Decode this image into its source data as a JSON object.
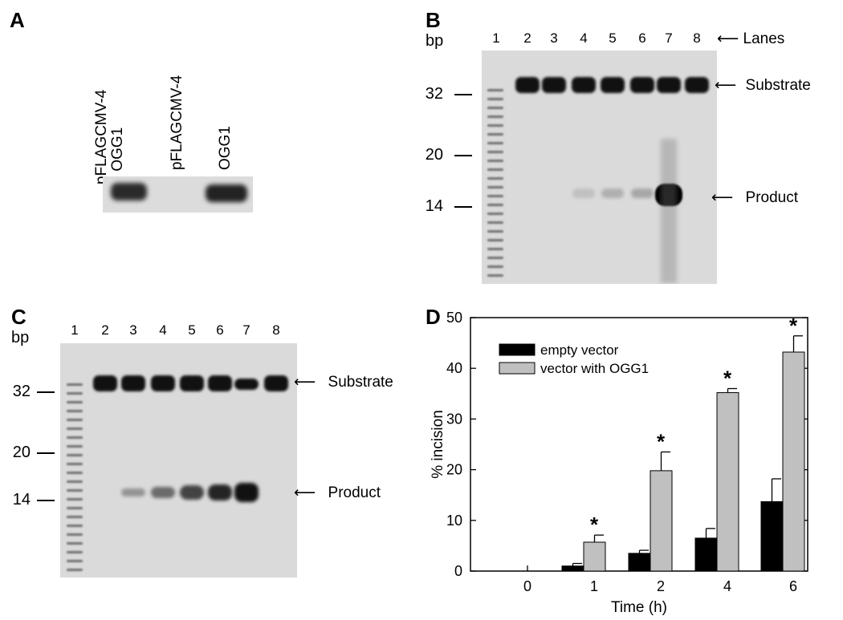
{
  "panel_a": {
    "letter": "A",
    "lane_labels": [
      "pFLAGCMV-4\n+ OGG1",
      "pFLAGCMV-4",
      "OGG1"
    ]
  },
  "panel_b": {
    "letter": "B",
    "bp_label": "bp",
    "lane_numbers": [
      "1",
      "2",
      "3",
      "4",
      "5",
      "6",
      "7",
      "8"
    ],
    "lanes_label": "Lanes",
    "markers": [
      "32",
      "20",
      "14"
    ],
    "substrate_label": "Substrate",
    "product_label": "Product"
  },
  "panel_c": {
    "letter": "C",
    "bp_label": "bp",
    "lane_numbers": [
      "1",
      "2",
      "3",
      "4",
      "5",
      "6",
      "7",
      "8"
    ],
    "markers": [
      "32",
      "20",
      "14"
    ],
    "substrate_label": "Substrate",
    "product_label": "Product"
  },
  "panel_d": {
    "letter": "D"
  },
  "chart_data": {
    "type": "bar",
    "categories": [
      "0",
      "1",
      "2",
      "4",
      "6"
    ],
    "series": [
      {
        "name": "empty vector",
        "values": [
          0,
          1.0,
          3.5,
          6.5,
          13.7
        ],
        "errors": [
          0,
          0.5,
          0.6,
          1.9,
          4.5
        ],
        "color": "#000000"
      },
      {
        "name": "vector with OGG1",
        "values": [
          0,
          5.7,
          19.8,
          35.2,
          43.2
        ],
        "errors": [
          0,
          1.4,
          3.7,
          0.8,
          3.2
        ],
        "color": "#c0c0c0"
      }
    ],
    "significance_marker": "*",
    "significant_categories": [
      "1",
      "2",
      "4",
      "6"
    ],
    "xlabel": "Time (h)",
    "ylabel": "% incision",
    "ylim": [
      0,
      50
    ],
    "yticks": [
      "0",
      "10",
      "20",
      "30",
      "40",
      "50"
    ],
    "legend_position": "top-left"
  }
}
